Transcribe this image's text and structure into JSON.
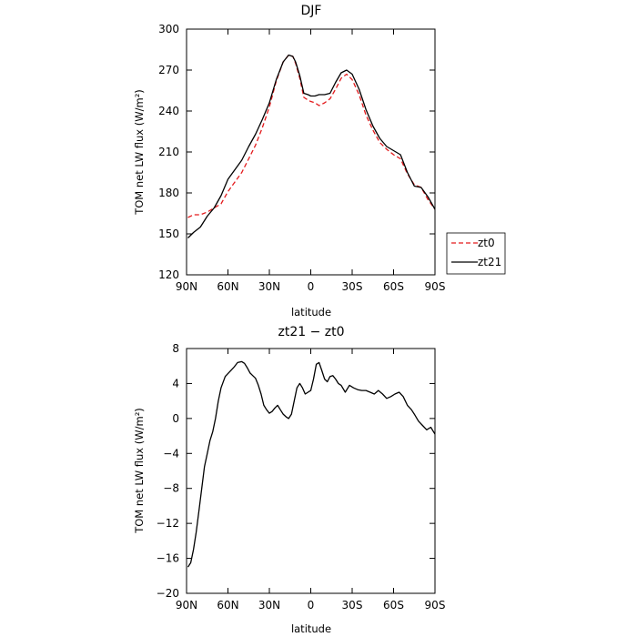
{
  "chart_data": [
    {
      "type": "line",
      "title": "DJF",
      "xlabel": "latitude",
      "ylabel": "TOM net LW flux (W/m²)",
      "x_tick_labels": [
        "90N",
        "60N",
        "30N",
        "0",
        "30S",
        "60S",
        "90S"
      ],
      "x_ticks": [
        -90,
        -60,
        -30,
        0,
        30,
        60,
        90
      ],
      "xlim": [
        -90,
        90
      ],
      "ylim": [
        120,
        300
      ],
      "y_ticks": [
        120,
        150,
        180,
        210,
        240,
        270,
        300
      ],
      "y_tick_labels": [
        "120",
        "150",
        "180",
        "210",
        "240",
        "270",
        "300"
      ],
      "legend_position": "right",
      "series": [
        {
          "name": "zt0",
          "color": "#e31a1c",
          "dash": "dashed",
          "x": [
            -89,
            -85,
            -80,
            -75,
            -70,
            -65,
            -60,
            -55,
            -50,
            -45,
            -40,
            -35,
            -30,
            -25,
            -20,
            -16,
            -13,
            -11,
            -8,
            -5,
            -2,
            0,
            3,
            6,
            10,
            14,
            18,
            22,
            26,
            30,
            35,
            40,
            45,
            50,
            55,
            60,
            65,
            70,
            75,
            80,
            85,
            90
          ],
          "y": [
            162,
            164,
            164,
            166,
            169,
            172,
            181,
            188,
            195,
            205,
            215,
            228,
            243,
            262,
            276,
            281,
            280,
            275,
            264,
            250,
            248,
            247,
            246,
            244,
            246,
            249,
            256,
            264,
            267,
            263,
            252,
            237,
            226,
            217,
            212,
            208,
            205,
            194,
            186,
            184,
            175,
            168
          ]
        },
        {
          "name": "zt21",
          "color": "#000000",
          "dash": "solid",
          "x": [
            -89,
            -85,
            -80,
            -75,
            -70,
            -65,
            -60,
            -55,
            -50,
            -45,
            -40,
            -35,
            -30,
            -25,
            -20,
            -16,
            -13,
            -11,
            -8,
            -5,
            -2,
            0,
            3,
            6,
            10,
            14,
            18,
            22,
            26,
            30,
            35,
            40,
            45,
            50,
            55,
            60,
            65,
            70,
            75,
            80,
            85,
            90
          ],
          "y": [
            147,
            151,
            155,
            163,
            169,
            178,
            190,
            197,
            204,
            214,
            223,
            234,
            246,
            263,
            276,
            281,
            280,
            276,
            266,
            253,
            252,
            251,
            251,
            252,
            252,
            253,
            261,
            268,
            270,
            267,
            256,
            241,
            229,
            220,
            214,
            211,
            208,
            195,
            185,
            184,
            177,
            168
          ]
        }
      ]
    },
    {
      "type": "line",
      "title": "zt21 − zt0",
      "xlabel": "latitude",
      "ylabel": "TOM net LW flux (W/m²)",
      "x_tick_labels": [
        "90N",
        "60N",
        "30N",
        "0",
        "30S",
        "60S",
        "90S"
      ],
      "x_ticks": [
        -90,
        -60,
        -30,
        0,
        30,
        60,
        90
      ],
      "xlim": [
        -90,
        90
      ],
      "ylim": [
        -20,
        8
      ],
      "y_ticks": [
        -20,
        -16,
        -12,
        -8,
        -4,
        0,
        4,
        8
      ],
      "y_tick_labels": [
        "−20",
        "−16",
        "−12",
        "−8",
        "−4",
        "0",
        "4",
        "8"
      ],
      "series": [
        {
          "name": "",
          "color": "#000000",
          "dash": "solid",
          "x": [
            -89,
            -87,
            -85,
            -83,
            -81,
            -79,
            -77,
            -75,
            -73,
            -71,
            -69,
            -67,
            -65,
            -62,
            -59,
            -56,
            -53,
            -50,
            -48,
            -46,
            -44,
            -42,
            -40,
            -38,
            -36,
            -34,
            -32,
            -30,
            -28,
            -26,
            -24,
            -22,
            -20,
            -18,
            -16,
            -14,
            -12,
            -10,
            -8,
            -6,
            -4,
            -2,
            0,
            2,
            4,
            6,
            8,
            10,
            12,
            14,
            16,
            18,
            20,
            22,
            25,
            28,
            31,
            34,
            37,
            40,
            43,
            46,
            49,
            52,
            55,
            58,
            61,
            64,
            67,
            70,
            73,
            75,
            78,
            81,
            84,
            87,
            90
          ],
          "y": [
            -17,
            -16.5,
            -15,
            -13,
            -10.5,
            -8,
            -5.5,
            -4,
            -2.5,
            -1.5,
            0,
            2,
            3.5,
            4.8,
            5.3,
            5.8,
            6.4,
            6.5,
            6.3,
            5.8,
            5.2,
            4.9,
            4.6,
            3.8,
            2.8,
            1.5,
            1.0,
            0.6,
            0.8,
            1.2,
            1.5,
            1.0,
            0.5,
            0.2,
            0.0,
            0.5,
            2.0,
            3.5,
            4.0,
            3.5,
            2.8,
            3.0,
            3.2,
            4.5,
            6.2,
            6.4,
            5.5,
            4.5,
            4.2,
            4.8,
            4.9,
            4.5,
            4.0,
            3.8,
            3.0,
            3.8,
            3.5,
            3.3,
            3.2,
            3.2,
            3.0,
            2.8,
            3.2,
            2.8,
            2.3,
            2.5,
            2.8,
            3.0,
            2.5,
            1.5,
            1.0,
            0.5,
            -0.3,
            -0.8,
            -1.3,
            -1.0,
            -1.8
          ]
        }
      ]
    }
  ],
  "legend": {
    "entries": [
      {
        "label": "zt0",
        "color": "#e31a1c",
        "dash": "dashed"
      },
      {
        "label": "zt21",
        "color": "#000000",
        "dash": "solid"
      }
    ]
  }
}
